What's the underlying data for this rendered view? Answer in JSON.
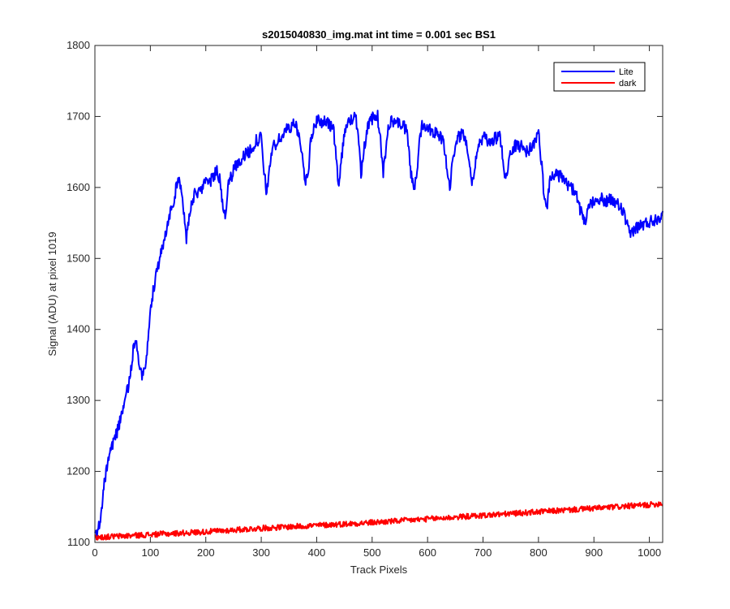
{
  "chart_data": {
    "type": "line",
    "title": "s2015040830_img.mat int time = 0.001 sec   BS1",
    "xlabel": "Track Pixels",
    "ylabel": "Signal (ADU) at pixel 1019",
    "xlim": [
      0,
      1024
    ],
    "ylim": [
      1100,
      1800
    ],
    "xticks": [
      0,
      100,
      200,
      300,
      400,
      500,
      600,
      700,
      800,
      900,
      1000
    ],
    "yticks": [
      1100,
      1200,
      1300,
      1400,
      1500,
      1600,
      1700,
      1800
    ],
    "grid": false,
    "legend_position": "top-right",
    "series": [
      {
        "name": "Lite",
        "color": "#0000ff",
        "x": [
          0,
          5,
          10,
          15,
          20,
          25,
          30,
          40,
          50,
          60,
          65,
          70,
          75,
          80,
          85,
          90,
          95,
          100,
          110,
          120,
          130,
          140,
          150,
          155,
          160,
          165,
          170,
          180,
          190,
          200,
          210,
          220,
          225,
          230,
          235,
          240,
          250,
          260,
          270,
          280,
          290,
          300,
          305,
          310,
          315,
          320,
          330,
          340,
          350,
          360,
          370,
          375,
          380,
          385,
          390,
          400,
          410,
          420,
          430,
          435,
          440,
          450,
          460,
          470,
          475,
          480,
          490,
          500,
          510,
          515,
          520,
          525,
          530,
          540,
          550,
          560,
          565,
          570,
          575,
          580,
          585,
          590,
          595,
          600,
          610,
          620,
          630,
          635,
          640,
          650,
          660,
          670,
          675,
          680,
          690,
          700,
          710,
          720,
          730,
          735,
          740,
          745,
          750,
          760,
          770,
          780,
          790,
          800,
          805,
          810,
          815,
          820,
          830,
          840,
          850,
          860,
          870,
          875,
          880,
          885,
          890,
          900,
          910,
          920,
          930,
          940,
          950,
          955,
          960,
          965,
          970,
          980,
          990,
          1000,
          1010,
          1020,
          1024
        ],
        "y": [
          1108,
          1115,
          1135,
          1170,
          1200,
          1220,
          1235,
          1255,
          1285,
          1320,
          1345,
          1375,
          1375,
          1350,
          1338,
          1345,
          1380,
          1430,
          1475,
          1510,
          1545,
          1575,
          1610,
          1605,
          1570,
          1525,
          1560,
          1590,
          1598,
          1605,
          1610,
          1625,
          1612,
          1580,
          1560,
          1600,
          1625,
          1638,
          1645,
          1652,
          1665,
          1670,
          1620,
          1592,
          1630,
          1655,
          1665,
          1675,
          1685,
          1690,
          1670,
          1635,
          1610,
          1625,
          1670,
          1695,
          1693,
          1690,
          1685,
          1640,
          1605,
          1680,
          1695,
          1698,
          1680,
          1620,
          1680,
          1697,
          1700,
          1665,
          1620,
          1655,
          1690,
          1695,
          1690,
          1683,
          1665,
          1620,
          1595,
          1615,
          1665,
          1690,
          1688,
          1685,
          1680,
          1675,
          1660,
          1625,
          1600,
          1665,
          1675,
          1668,
          1640,
          1605,
          1655,
          1670,
          1665,
          1668,
          1672,
          1645,
          1615,
          1630,
          1650,
          1660,
          1658,
          1650,
          1660,
          1675,
          1640,
          1590,
          1570,
          1610,
          1620,
          1615,
          1605,
          1600,
          1585,
          1570,
          1555,
          1545,
          1572,
          1583,
          1585,
          1580,
          1582,
          1578,
          1570,
          1560,
          1545,
          1532,
          1540,
          1545,
          1548,
          1552,
          1555,
          1560,
          1568
        ]
      },
      {
        "name": "dark",
        "color": "#ff0000",
        "x": [
          0,
          100,
          200,
          300,
          400,
          500,
          600,
          700,
          800,
          900,
          1000,
          1024
        ],
        "y": [
          1107,
          1111,
          1115,
          1120,
          1124,
          1128,
          1133,
          1138,
          1143,
          1148,
          1153,
          1155
        ]
      }
    ]
  }
}
